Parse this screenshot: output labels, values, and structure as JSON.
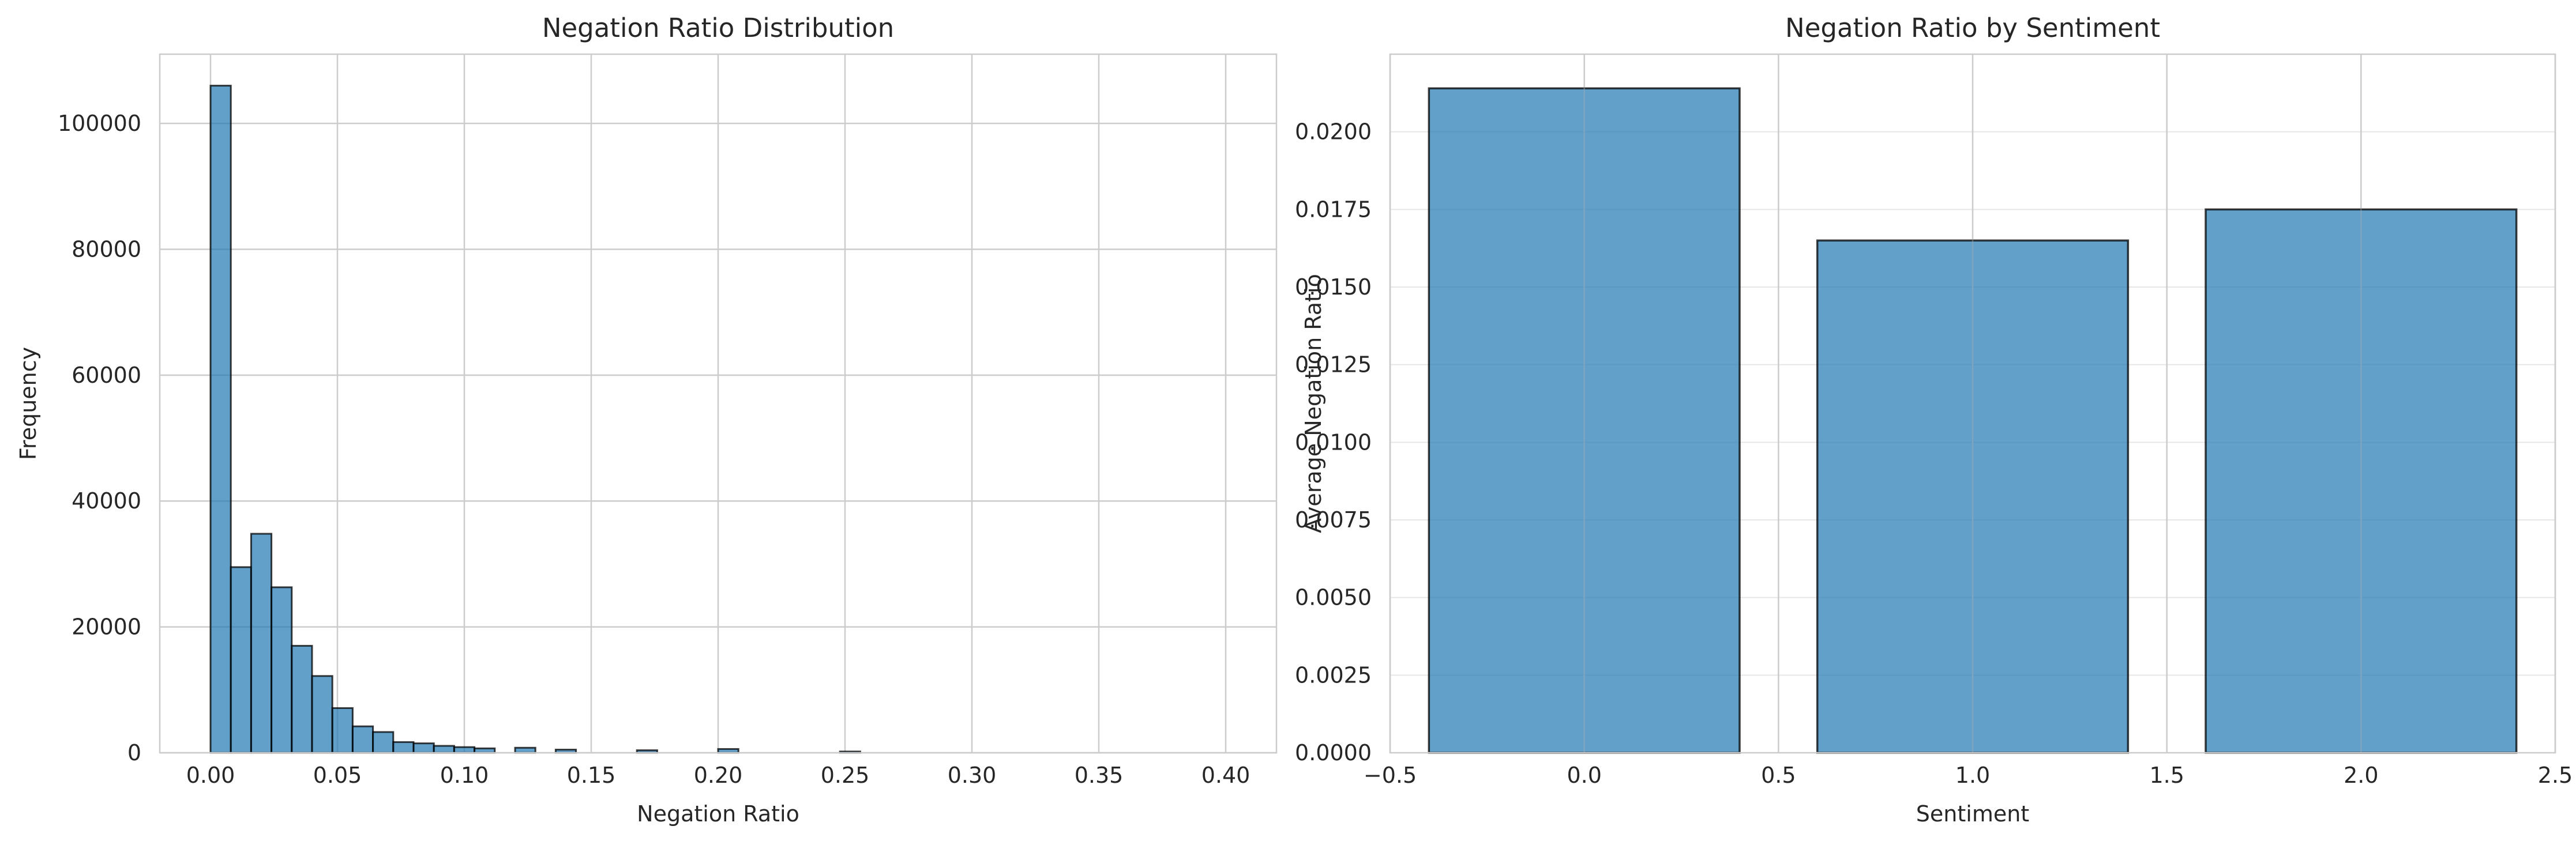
{
  "chart_data": [
    {
      "type": "bar",
      "title": "Negation Ratio Distribution",
      "xlabel": "Negation Ratio",
      "ylabel": "Frequency",
      "xlim": [
        -0.02,
        0.42
      ],
      "ylim": [
        0,
        111000
      ],
      "xticks": [
        "0.00",
        "0.05",
        "0.10",
        "0.15",
        "0.20",
        "0.25",
        "0.30",
        "0.35",
        "0.40"
      ],
      "yticks": [
        "0",
        "20000",
        "40000",
        "60000",
        "80000",
        "100000"
      ],
      "grid": true,
      "bin_width": 0.008,
      "bin_start": 0.0,
      "values": [
        106000,
        29500,
        34800,
        26300,
        17000,
        12200,
        7100,
        4200,
        3300,
        1700,
        1500,
        1100,
        900,
        700,
        0,
        800,
        0,
        500,
        0,
        0,
        0,
        400,
        0,
        0,
        0,
        600,
        0,
        0,
        0,
        0,
        0,
        200,
        0,
        0,
        0,
        0,
        0,
        0,
        0,
        0,
        0,
        0,
        0,
        0,
        0,
        0,
        0,
        0,
        0,
        0
      ]
    },
    {
      "type": "bar",
      "title": "Negation Ratio by Sentiment",
      "xlabel": "Sentiment",
      "ylabel": "Average Negation Ratio",
      "xlim": [
        -0.5,
        2.5
      ],
      "ylim": [
        0,
        0.0225
      ],
      "xticks": [
        "−0.5",
        "0.0",
        "0.5",
        "1.0",
        "1.5",
        "2.0",
        "2.5"
      ],
      "yticks": [
        "0.0000",
        "0.0025",
        "0.0050",
        "0.0075",
        "0.0100",
        "0.0125",
        "0.0150",
        "0.0175",
        "0.0200"
      ],
      "grid": true,
      "x": [
        0,
        1,
        2
      ],
      "values": [
        0.0214,
        0.0165,
        0.0175
      ]
    }
  ]
}
